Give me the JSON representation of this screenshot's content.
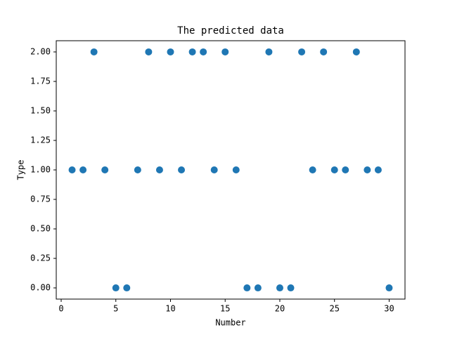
{
  "chart_data": {
    "type": "scatter",
    "title": "The predicted data",
    "x_label": "Number",
    "y_label": "Type",
    "x": [
      1,
      2,
      3,
      4,
      5,
      6,
      7,
      8,
      9,
      10,
      11,
      12,
      13,
      14,
      15,
      16,
      17,
      18,
      19,
      20,
      21,
      22,
      23,
      24,
      25,
      26,
      27,
      28,
      29,
      30
    ],
    "values": [
      1,
      1,
      2,
      1,
      0,
      0,
      1,
      2,
      1,
      2,
      1,
      2,
      2,
      1,
      2,
      1,
      0,
      0,
      2,
      0,
      0,
      2,
      1,
      2,
      1,
      1,
      2,
      1,
      1,
      0
    ],
    "color": "#1f77b4",
    "xlim": [
      -0.45,
      31.45
    ],
    "xticks": [
      0,
      5,
      10,
      15,
      20,
      25,
      30
    ],
    "ylim": [
      -0.095,
      2.095
    ],
    "yticks": [
      {
        "value": 0,
        "label": "0.00"
      },
      {
        "value": 0.25,
        "label": "0.25"
      },
      {
        "value": 0.5,
        "label": "0.50"
      },
      {
        "value": 0.75,
        "label": "0.75"
      },
      {
        "value": 1,
        "label": "1.00"
      },
      {
        "value": 1.25,
        "label": "1.25"
      },
      {
        "value": 1.5,
        "label": "1.50"
      },
      {
        "value": 1.75,
        "label": "1.75"
      },
      {
        "value": 2,
        "label": "2.00"
      }
    ]
  }
}
